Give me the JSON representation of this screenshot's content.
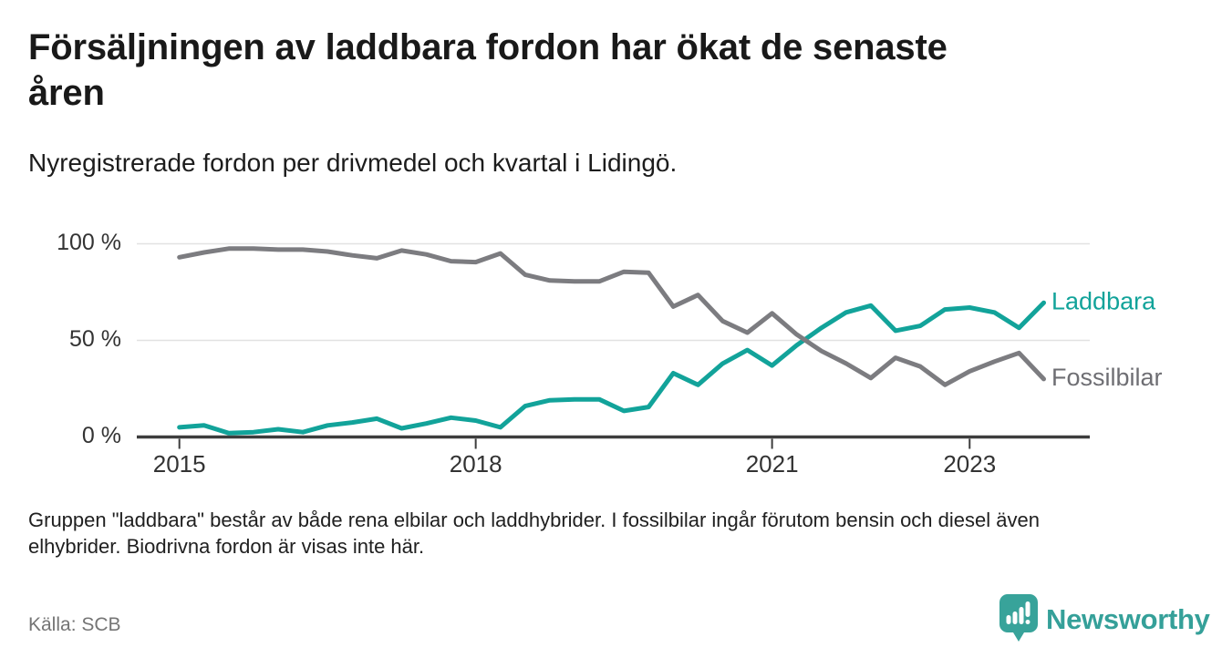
{
  "title": {
    "lines": [
      "Försäljningen av laddbara fordon har ökat de senaste",
      "åren"
    ]
  },
  "subtitle": "Nyregistrerade fordon per drivmedel och kvartal i Lidingö.",
  "footnote": {
    "lines": [
      "Gruppen \"laddbara\" består av både rena elbilar och laddhybrider. I fossilbilar ingår förutom bensin och diesel även",
      "elhybrider. Biodrivna fordon är visas inte här."
    ]
  },
  "source": "Källa: SCB",
  "brand": {
    "name": "Newsworthy",
    "icon": "newsworthy-pin-bar-chart-icon",
    "color": "#35a099"
  },
  "colors": {
    "accent_teal": "#12a39a",
    "line_gray": "#7c7c80",
    "label_gray": "#6e6e73",
    "grid": "#e2e2e2",
    "axis": "#3d3d3d",
    "tick_text": "#333333"
  },
  "chart_data": {
    "type": "line",
    "title": "Nyregistrerade fordon per drivmedel och kvartal i Lidingö",
    "unit": "%",
    "ylim": [
      0,
      100
    ],
    "grid": "horizontal",
    "legend_position": "line-end-right",
    "quarters": [
      "2015Q1",
      "2015Q2",
      "2015Q3",
      "2015Q4",
      "2016Q1",
      "2016Q2",
      "2016Q3",
      "2016Q4",
      "2017Q1",
      "2017Q2",
      "2017Q3",
      "2017Q4",
      "2018Q1",
      "2018Q2",
      "2018Q3",
      "2018Q4",
      "2019Q1",
      "2019Q2",
      "2019Q3",
      "2019Q4",
      "2020Q1",
      "2020Q2",
      "2020Q3",
      "2020Q4",
      "2021Q1",
      "2021Q2",
      "2021Q3",
      "2021Q4",
      "2022Q1",
      "2022Q2",
      "2022Q3",
      "2022Q4",
      "2023Q1",
      "2023Q2",
      "2023Q3",
      "2023Q4"
    ],
    "x_ticks": [
      {
        "label": "2015",
        "index": 0
      },
      {
        "label": "2018",
        "index": 12
      },
      {
        "label": "2021",
        "index": 24
      },
      {
        "label": "2023",
        "index": 32
      }
    ],
    "y_ticks": [
      {
        "label": "0 %",
        "value": 0
      },
      {
        "label": "50 %",
        "value": 50
      },
      {
        "label": "100 %",
        "value": 100
      }
    ],
    "series": [
      {
        "name": "Laddbara",
        "color": "#12a39a",
        "label_color": "#12a39a",
        "values": [
          5,
          6,
          2,
          2.5,
          4,
          2.5,
          6,
          7.5,
          9.5,
          4.5,
          7,
          10,
          8.5,
          5,
          16,
          19,
          19.5,
          19.5,
          13.5,
          15.5,
          33,
          27,
          38,
          45,
          37,
          47.5,
          56.5,
          64.5,
          68,
          55,
          57.5,
          66,
          67,
          64.5,
          56.5,
          69.5
        ]
      },
      {
        "name": "Fossilbilar",
        "color": "#7c7c80",
        "label_color": "#6e6e73",
        "values": [
          93,
          95.5,
          97.5,
          97.5,
          97,
          97,
          96,
          94,
          92.5,
          96.5,
          94.5,
          91,
          90.5,
          95,
          84,
          81,
          80.5,
          80.5,
          85.5,
          85,
          67.5,
          73.5,
          60,
          54,
          64,
          53,
          44.5,
          38,
          30.5,
          41,
          36.5,
          27,
          34,
          39,
          43.5,
          30
        ]
      }
    ]
  }
}
